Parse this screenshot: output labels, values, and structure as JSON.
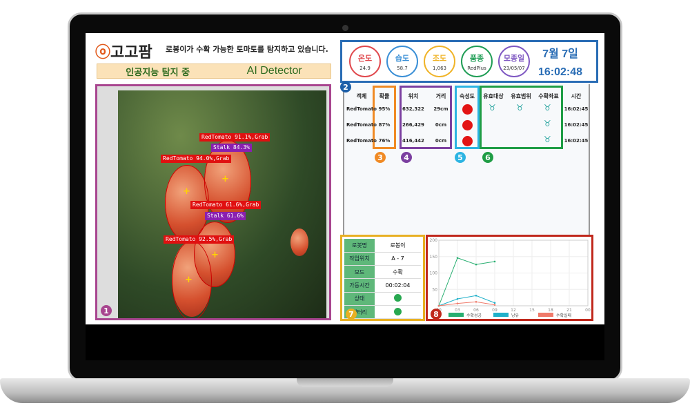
{
  "header": {
    "logo_text": "고고팜",
    "headline": "로봉이가 수확 가능한 토마토를 탐지하고 있습니다.",
    "ai_status": "인공지능 탐지 중",
    "ai_label": "AI Detector"
  },
  "status": {
    "items": [
      {
        "label": "온도",
        "value": "24.9",
        "color": "#e0474c"
      },
      {
        "label": "습도",
        "value": "58.7",
        "color": "#3a8fd6"
      },
      {
        "label": "조도",
        "value": "1,063",
        "color": "#f0b429"
      },
      {
        "label": "품종",
        "value": "RedPlus",
        "color": "#1f9d55"
      },
      {
        "label": "모종일",
        "value": "23/05/07",
        "color": "#7e57c2"
      }
    ],
    "date": "7월 7일",
    "time": "16:02:48"
  },
  "detections": [
    {
      "label": "RedTomato 91.1%,Grab"
    },
    {
      "label": "Stalk 84.3%"
    },
    {
      "label": "RedTomato 94.0%,Grab"
    },
    {
      "label": "RedTomato 61.6%,Grab"
    },
    {
      "label": "Stalk 61.6%"
    },
    {
      "label": "RedTomato 92.5%,Grab"
    }
  ],
  "badges": [
    "1",
    "2",
    "3",
    "4",
    "5",
    "6",
    "7",
    "8"
  ],
  "table": {
    "headers": [
      "객체",
      "확률",
      "위치",
      "거리",
      "숙성도",
      "유효대상",
      "유효범위",
      "수확좌표",
      "시간"
    ],
    "rows": [
      {
        "object": "RedTomato",
        "prob": "95%",
        "pos": "632,322",
        "dist": "29cm",
        "time": "16:02:45",
        "valid_target": true,
        "valid_range": true,
        "harvest": true
      },
      {
        "object": "RedTomato",
        "prob": "87%",
        "pos": "266,429",
        "dist": "0cm",
        "time": "16:02:45",
        "valid_target": false,
        "valid_range": false,
        "harvest": true
      },
      {
        "object": "RedTomato",
        "prob": "76%",
        "pos": "416,442",
        "dist": "0cm",
        "time": "16:02:45",
        "valid_target": false,
        "valid_range": false,
        "harvest": true
      }
    ]
  },
  "robot_info": [
    {
      "key": "로봇명",
      "value": "로봉이"
    },
    {
      "key": "작업위치",
      "value": "A - 7"
    },
    {
      "key": "모드",
      "value": "수확"
    },
    {
      "key": "가동시간",
      "value": "00:02:04"
    },
    {
      "key": "상태",
      "value": "",
      "status": "ok"
    },
    {
      "key": "배터리",
      "value": "",
      "status": "ok"
    }
  ],
  "chart_data": {
    "type": "line",
    "x": [
      "00",
      "03",
      "06",
      "09"
    ],
    "xticks": [
      "00",
      "03",
      "06",
      "09",
      "12",
      "15",
      "18",
      "21",
      "00"
    ],
    "ylim": [
      0,
      200
    ],
    "yticks": [
      50,
      100,
      150,
      200
    ],
    "grid": true,
    "legend": "bottom",
    "series": [
      {
        "name": "수확성공",
        "color": "#27ae70",
        "values": [
          0,
          146,
          126,
          135
        ]
      },
      {
        "name": "낭유",
        "color": "#1fb0c9",
        "values": [
          0,
          21,
          31,
          9
        ]
      },
      {
        "name": "수확실패",
        "color": "#f07a6a",
        "values": [
          0,
          7,
          12,
          3
        ]
      }
    ]
  }
}
